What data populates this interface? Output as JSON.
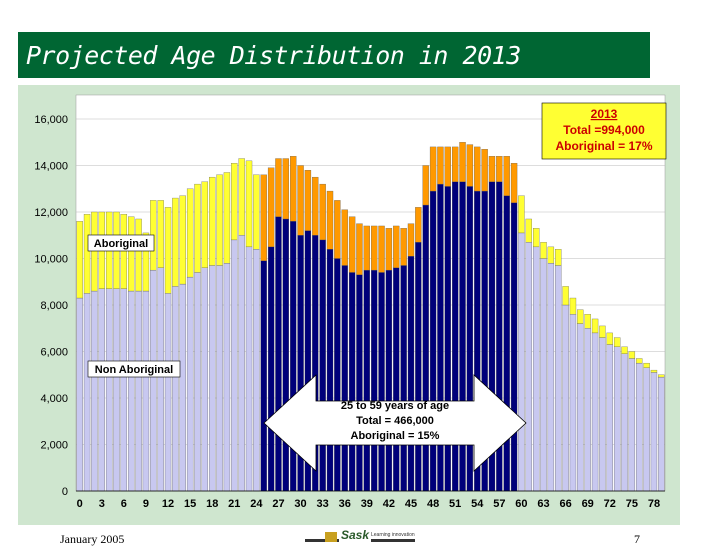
{
  "slide": {
    "title": "Projected Age Distribution in 2013",
    "footer_date": "January 2005",
    "page_number": "7",
    "logo_text": "Sask",
    "logo_small": "Learning innovation"
  },
  "colors": {
    "title_bg": "#006633",
    "plot_bg": "#cfe6cf",
    "non_aboriginal_outer": "#c8c8f0",
    "non_aboriginal_mid": "#00007a",
    "aboriginal_outer": "#ffff33",
    "aboriginal_mid": "#ff9900"
  },
  "chart_data": {
    "type": "bar",
    "stacked": true,
    "title": "",
    "xlabel": "",
    "ylabel": "",
    "ylim": [
      0,
      16000
    ],
    "yticks": [
      "0",
      "2,000",
      "4,000",
      "6,000",
      "8,000",
      "10,000",
      "12,000",
      "14,000",
      "16,000"
    ],
    "ytick_values": [
      0,
      2000,
      4000,
      6000,
      8000,
      10000,
      12000,
      14000,
      16000
    ],
    "x_ages": [
      0,
      1,
      2,
      3,
      4,
      5,
      6,
      7,
      8,
      9,
      10,
      11,
      12,
      13,
      14,
      15,
      16,
      17,
      18,
      19,
      20,
      21,
      22,
      23,
      24,
      25,
      26,
      27,
      28,
      29,
      30,
      31,
      32,
      33,
      34,
      35,
      36,
      37,
      38,
      39,
      40,
      41,
      42,
      43,
      44,
      45,
      46,
      47,
      48,
      49,
      50,
      51,
      52,
      53,
      54,
      55,
      56,
      57,
      58,
      59,
      60,
      61,
      62,
      63,
      64,
      65,
      66,
      67,
      68,
      69,
      70,
      71,
      72,
      73,
      74,
      75,
      76,
      77,
      78,
      79
    ],
    "xtick_labels": [
      "0",
      "3",
      "6",
      "9",
      "12",
      "15",
      "18",
      "21",
      "24",
      "27",
      "30",
      "33",
      "36",
      "39",
      "42",
      "45",
      "48",
      "51",
      "54",
      "57",
      "60",
      "63",
      "66",
      "69",
      "72",
      "75",
      "78"
    ],
    "highlight_range": [
      25,
      59
    ],
    "series": [
      {
        "name": "Non Aboriginal",
        "values": [
          8300,
          8500,
          8600,
          8700,
          8700,
          8700,
          8700,
          8600,
          8600,
          8600,
          9500,
          9600,
          8500,
          8800,
          8900,
          9200,
          9400,
          9600,
          9700,
          9700,
          9800,
          10800,
          11000,
          10500,
          10400,
          9900,
          10500,
          11800,
          11700,
          11600,
          11000,
          11200,
          11000,
          10800,
          10400,
          10000,
          9700,
          9400,
          9300,
          9500,
          9500,
          9400,
          9500,
          9600,
          9700,
          10100,
          10700,
          12300,
          12900,
          13200,
          13100,
          13300,
          13300,
          13100,
          12900,
          12900,
          13300,
          13300,
          12700,
          12400,
          11100,
          10700,
          10500,
          10000,
          9800,
          9700,
          8000,
          7600,
          7200,
          7000,
          6800,
          6600,
          6300,
          6200,
          5900,
          5700,
          5500,
          5300,
          5100,
          4900
        ]
      },
      {
        "name": "Aboriginal",
        "values": [
          3300,
          3400,
          3400,
          3300,
          3300,
          3300,
          3200,
          3200,
          3100,
          2500,
          3000,
          2900,
          3700,
          3800,
          3800,
          3800,
          3800,
          3700,
          3800,
          3900,
          3900,
          3300,
          3300,
          3700,
          3200,
          3700,
          3400,
          2500,
          2600,
          2800,
          3000,
          2600,
          2500,
          2400,
          2500,
          2500,
          2400,
          2400,
          2200,
          1900,
          1900,
          2000,
          1800,
          1800,
          1600,
          1400,
          1500,
          1700,
          1900,
          1600,
          1700,
          1500,
          1700,
          1800,
          1900,
          1800,
          1100,
          1100,
          1700,
          1700,
          1600,
          1000,
          800,
          700,
          700,
          700,
          800,
          700,
          600,
          600,
          600,
          500,
          500,
          400,
          300,
          300,
          200,
          200,
          100,
          100
        ]
      }
    ],
    "annotations": {
      "aboriginal_label": "Aboriginal",
      "non_aboriginal_label": "Non Aboriginal",
      "summary_year": "2013",
      "summary_total": "Total =994,000",
      "summary_aboriginal": "Aboriginal = 17%",
      "arrow_line1": "25 to 59 years of age",
      "arrow_line2": "Total = 466,000",
      "arrow_line3": "Aboriginal = 15%"
    }
  }
}
